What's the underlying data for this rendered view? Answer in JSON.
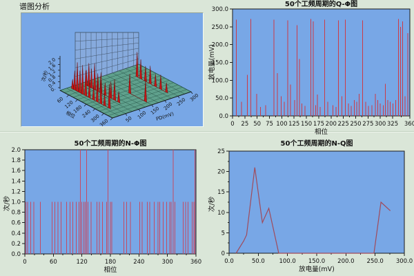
{
  "page": {
    "label": "谱图分析",
    "bg": "#dae6d8"
  },
  "colors": {
    "page_bg": "#dae6d8",
    "plot_bg": "#78a7e6",
    "frame": "#1a1a1a",
    "stem_red": "#cc3a46",
    "stem_pink": "#c44a62",
    "line_maroon": "#a04a5a",
    "floor_teal": "#5fa08c",
    "peak_red": "#c51616"
  },
  "chart_data": [
    {
      "id": "qphi",
      "type": "stem",
      "title": "50个工频周期的Q-Φ图",
      "xlabel": "相位",
      "ylabel": "放电量(mV)",
      "xlim": [
        0,
        360
      ],
      "ylim": [
        0,
        300
      ],
      "xticks": [
        "0",
        "25",
        "50",
        "75",
        "100",
        "125",
        "150",
        "175",
        "200",
        "225",
        "250",
        "275",
        "300",
        "325",
        "360"
      ],
      "yticks": [
        "300.0",
        "250.0",
        "200.0",
        "150.0",
        "100.0",
        "50.0",
        "0.0"
      ],
      "xminor": 1,
      "yminor": 0,
      "color": "#cc3a46",
      "stems": [
        [
          8,
          270
        ],
        [
          18,
          40
        ],
        [
          30,
          115
        ],
        [
          37,
          272
        ],
        [
          49,
          62
        ],
        [
          57,
          25
        ],
        [
          67,
          30
        ],
        [
          84,
          270
        ],
        [
          91,
          120
        ],
        [
          99,
          55
        ],
        [
          105,
          40
        ],
        [
          112,
          268
        ],
        [
          118,
          88
        ],
        [
          126,
          45
        ],
        [
          131,
          255
        ],
        [
          136,
          160
        ],
        [
          141,
          35
        ],
        [
          147,
          28
        ],
        [
          159,
          272
        ],
        [
          164,
          265
        ],
        [
          169,
          30
        ],
        [
          172,
          60
        ],
        [
          178,
          25
        ],
        [
          187,
          270
        ],
        [
          193,
          40
        ],
        [
          204,
          30
        ],
        [
          210,
          25
        ],
        [
          215,
          268
        ],
        [
          222,
          55
        ],
        [
          229,
          270
        ],
        [
          235,
          35
        ],
        [
          241,
          28
        ],
        [
          247,
          45
        ],
        [
          252,
          40
        ],
        [
          257,
          62
        ],
        [
          264,
          268
        ],
        [
          270,
          40
        ],
        [
          276,
          28
        ],
        [
          283,
          30
        ],
        [
          290,
          62
        ],
        [
          295,
          45
        ],
        [
          300,
          35
        ],
        [
          306,
          30
        ],
        [
          310,
          90
        ],
        [
          315,
          45
        ],
        [
          320,
          40
        ],
        [
          326,
          35
        ],
        [
          331,
          45
        ],
        [
          337,
          272
        ],
        [
          341,
          250
        ],
        [
          345,
          265
        ],
        [
          350,
          55
        ],
        [
          356,
          232
        ]
      ]
    },
    {
      "id": "nphi",
      "type": "stem",
      "title": "50个工频周期的N-Φ图",
      "xlabel": "相位",
      "ylabel": "次/秒",
      "xlim": [
        0,
        360
      ],
      "ylim": [
        0,
        2
      ],
      "xticks": [
        "0",
        "60",
        "120",
        "180",
        "240",
        "300",
        "360"
      ],
      "yticks": [
        "2.0",
        "1.8",
        "1.6",
        "1.4",
        "1.2",
        "1.0",
        "0.8",
        "0.6",
        "0.4",
        "0.2",
        "0.0"
      ],
      "xminor": 2,
      "yminor": 0,
      "color": "#c44a62",
      "stems": [
        [
          2,
          1
        ],
        [
          6,
          1
        ],
        [
          12,
          1
        ],
        [
          19,
          1
        ],
        [
          33,
          1
        ],
        [
          57,
          1
        ],
        [
          63,
          1
        ],
        [
          70,
          1
        ],
        [
          76,
          1
        ],
        [
          88,
          1
        ],
        [
          95,
          1
        ],
        [
          101,
          1
        ],
        [
          108,
          1
        ],
        [
          114,
          1
        ],
        [
          117,
          2
        ],
        [
          120,
          1
        ],
        [
          124,
          1
        ],
        [
          127,
          1
        ],
        [
          130,
          2
        ],
        [
          133,
          1
        ],
        [
          139,
          1
        ],
        [
          152,
          1
        ],
        [
          157,
          1
        ],
        [
          163,
          1
        ],
        [
          172,
          1
        ],
        [
          175,
          2
        ],
        [
          180,
          1
        ],
        [
          183,
          1
        ],
        [
          208,
          1
        ],
        [
          214,
          1
        ],
        [
          222,
          1
        ],
        [
          242,
          1
        ],
        [
          247,
          1
        ],
        [
          258,
          1
        ],
        [
          263,
          1
        ],
        [
          272,
          1
        ],
        [
          280,
          1
        ],
        [
          284,
          1
        ],
        [
          291,
          1
        ],
        [
          298,
          1
        ],
        [
          305,
          1
        ],
        [
          308,
          1
        ],
        [
          312,
          2
        ],
        [
          316,
          1
        ],
        [
          333,
          1
        ],
        [
          338,
          1
        ],
        [
          343,
          1
        ],
        [
          352,
          1
        ],
        [
          356,
          1
        ],
        [
          358,
          2
        ]
      ]
    },
    {
      "id": "nq",
      "type": "line",
      "title": "50个工频周期的N-Q图",
      "xlabel": "放电量(mV)",
      "ylabel": "次/秒",
      "xlim": [
        0,
        300
      ],
      "ylim": [
        0,
        25
      ],
      "xticks": [
        "0.0",
        "50.0",
        "100.0",
        "150.0",
        "200.0",
        "250.0",
        "300.0"
      ],
      "yticks": [
        "25",
        "20",
        "15",
        "10",
        "5",
        "0"
      ],
      "xminor": 1,
      "yminor": 1,
      "color": "#a04a5a",
      "points": [
        [
          12,
          0
        ],
        [
          25,
          3
        ],
        [
          30,
          4.5
        ],
        [
          44,
          21
        ],
        [
          57,
          7.5
        ],
        [
          68,
          11
        ],
        [
          85,
          0
        ],
        [
          248,
          0
        ],
        [
          260,
          12.5
        ],
        [
          276,
          10.4
        ]
      ]
    },
    {
      "id": "plot3d",
      "type": "3d-waterfall",
      "z_ticks": [
        "2.0",
        "1.6",
        "1.2",
        "0.8",
        "0.4",
        "0."
      ],
      "z_label": "次/秒",
      "phase_ticks": [
        "60",
        "120",
        "180",
        "240",
        "300",
        "360"
      ],
      "phase_label": "相位",
      "q_ticks": [
        "50",
        "100",
        "150",
        "200",
        "250",
        "300"
      ],
      "q_label": "PD(mV)",
      "ridges": [
        {
          "q": 0.8,
          "peaks": [
            [
              0.27,
              36
            ],
            [
              0.34,
              28
            ],
            [
              0.43,
              22
            ],
            [
              0.52,
              26
            ],
            [
              0.62,
              18
            ],
            [
              0.72,
              21
            ],
            [
              0.83,
              14
            ]
          ]
        },
        {
          "q": 0.5,
          "peaks": [
            [
              0.58,
              28
            ],
            [
              0.88,
              32
            ]
          ]
        },
        {
          "q": 0.28,
          "peaks": [
            [
              0.08,
              22
            ],
            [
              0.13,
              34
            ],
            [
              0.18,
              28
            ],
            [
              0.24,
              38
            ],
            [
              0.3,
              26
            ],
            [
              0.36,
              30
            ],
            [
              0.44,
              18
            ],
            [
              0.55,
              24
            ],
            [
              0.62,
              30
            ],
            [
              0.7,
              16
            ]
          ]
        },
        {
          "q": 0.12,
          "peaks": [
            [
              0.06,
              14
            ],
            [
              0.1,
              28
            ],
            [
              0.15,
              42
            ],
            [
              0.2,
              32
            ],
            [
              0.25,
              42
            ],
            [
              0.31,
              36
            ],
            [
              0.38,
              24
            ],
            [
              0.46,
              20
            ],
            [
              0.53,
              30
            ],
            [
              0.6,
              34
            ],
            [
              0.67,
              18
            ],
            [
              0.76,
              35
            ]
          ]
        }
      ]
    }
  ]
}
